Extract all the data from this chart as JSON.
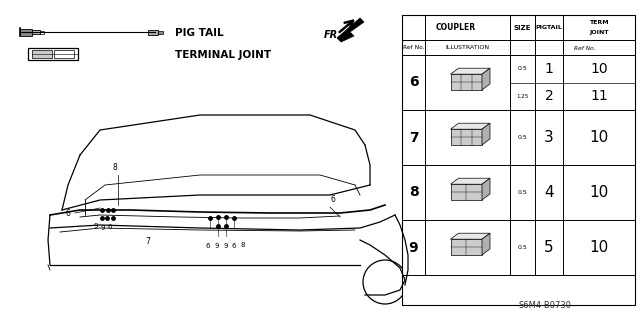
{
  "bg_color": "#ffffff",
  "part_number": "S6M4-B0730",
  "pig_tail_label": "PIG TAIL",
  "terminal_joint_label": "TERMINAL JOINT",
  "table": {
    "rows": [
      {
        "ref": "6",
        "double": true,
        "sub1": {
          "size": "0.5",
          "pig": "1",
          "term": "10"
        },
        "sub2": {
          "size": "1.25",
          "pig": "2",
          "term": "11"
        }
      },
      {
        "ref": "7",
        "double": false,
        "sub1": {
          "size": "0.5",
          "pig": "3",
          "term": "10"
        }
      },
      {
        "ref": "8",
        "double": false,
        "sub1": {
          "size": "0.5",
          "pig": "4",
          "term": "10"
        }
      },
      {
        "ref": "9",
        "double": false,
        "sub1": {
          "size": "0.5",
          "pig": "5",
          "term": "10"
        }
      }
    ]
  }
}
